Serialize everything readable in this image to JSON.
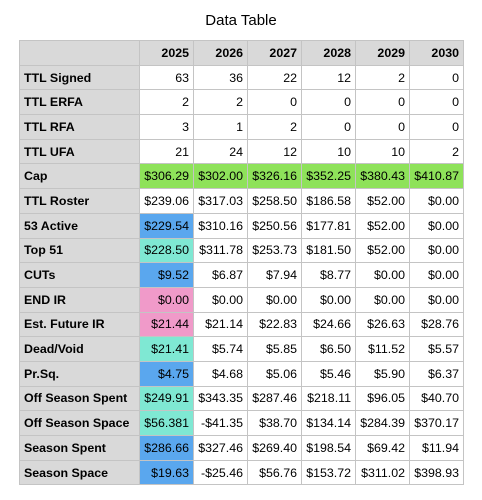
{
  "title": "Data Table",
  "columns": [
    "2025",
    "2026",
    "2027",
    "2028",
    "2029",
    "2030"
  ],
  "rows": [
    {
      "label": "TTL Signed",
      "values": [
        "63",
        "36",
        "22",
        "12",
        "2",
        "0"
      ],
      "highlight": null
    },
    {
      "label": "TTL ERFA",
      "values": [
        "2",
        "2",
        "0",
        "0",
        "0",
        "0"
      ],
      "highlight": null
    },
    {
      "label": "TTL RFA",
      "values": [
        "3",
        "1",
        "2",
        "0",
        "0",
        "0"
      ],
      "highlight": null
    },
    {
      "label": "TTL UFA",
      "values": [
        "21",
        "24",
        "12",
        "10",
        "10",
        "2"
      ],
      "highlight": null
    },
    {
      "label": "Cap",
      "values": [
        "$306.29",
        "$302.00",
        "$326.16",
        "$352.25",
        "$380.43",
        "$410.87"
      ],
      "highlight": "green-row"
    },
    {
      "label": "TTL Roster",
      "values": [
        "$239.06",
        "$317.03",
        "$258.50",
        "$186.58",
        "$52.00",
        "$0.00"
      ],
      "highlight": null
    },
    {
      "label": "53 Active",
      "values": [
        "$229.54",
        "$310.16",
        "$250.56",
        "$177.81",
        "$52.00",
        "$0.00"
      ],
      "highlight": "blue"
    },
    {
      "label": "Top 51",
      "values": [
        "$228.50",
        "$311.78",
        "$253.73",
        "$181.50",
        "$52.00",
        "$0.00"
      ],
      "highlight": "teal"
    },
    {
      "label": "CUTs",
      "values": [
        "$9.52",
        "$6.87",
        "$7.94",
        "$8.77",
        "$0.00",
        "$0.00"
      ],
      "highlight": "blue"
    },
    {
      "label": "END IR",
      "values": [
        "$0.00",
        "$0.00",
        "$0.00",
        "$0.00",
        "$0.00",
        "$0.00"
      ],
      "highlight": "pink"
    },
    {
      "label": "Est. Future IR",
      "values": [
        "$21.44",
        "$21.14",
        "$22.83",
        "$24.66",
        "$26.63",
        "$28.76"
      ],
      "highlight": "pink"
    },
    {
      "label": "Dead/Void",
      "values": [
        "$21.41",
        "$5.74",
        "$5.85",
        "$6.50",
        "$11.52",
        "$5.57"
      ],
      "highlight": "teal"
    },
    {
      "label": "Pr.Sq.",
      "values": [
        "$4.75",
        "$4.68",
        "$5.06",
        "$5.46",
        "$5.90",
        "$6.37"
      ],
      "highlight": "blue"
    },
    {
      "label": "Off Season Spent",
      "values": [
        "$249.91",
        "$343.35",
        "$287.46",
        "$218.11",
        "$96.05",
        "$40.70"
      ],
      "highlight": "teal"
    },
    {
      "label": "Off Season Space",
      "values": [
        "$56.381",
        "-$41.35",
        "$38.70",
        "$134.14",
        "$284.39",
        "$370.17"
      ],
      "highlight": "teal"
    },
    {
      "label": "Season Spent",
      "values": [
        "$286.66",
        "$327.46",
        "$269.40",
        "$198.54",
        "$69.42",
        "$11.94"
      ],
      "highlight": "blue"
    },
    {
      "label": "Season Space",
      "values": [
        "$19.63",
        "-$25.46",
        "$56.76",
        "$153.72",
        "$311.02",
        "$398.93"
      ],
      "highlight": "blue"
    }
  ],
  "colors": {
    "green": "#8ee25a",
    "blue": "#5aa7ee",
    "teal": "#7fe8d3",
    "pink": "#f09ac9",
    "header": "#d9d9d9"
  }
}
